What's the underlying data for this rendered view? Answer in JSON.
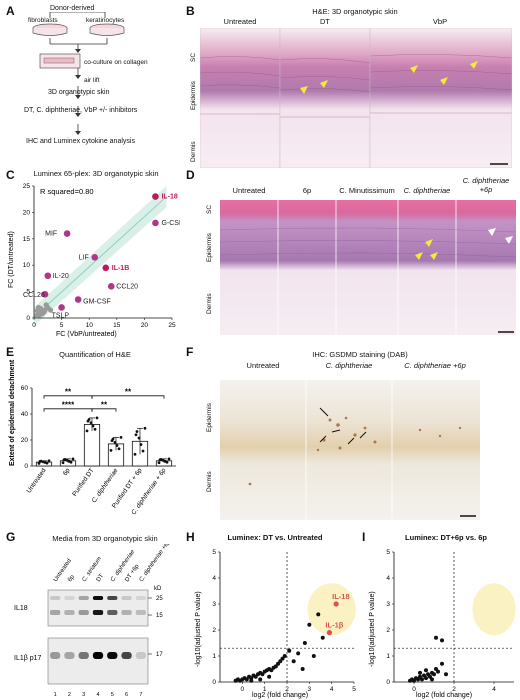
{
  "panelA": {
    "label": "A",
    "donor": "Donor-derived",
    "fibroblasts": "fibroblasts",
    "keratinocytes": "keratinocytes",
    "coculture": "co-culture on collagen",
    "airlift": "air lift",
    "skin": "3D organotypic skin",
    "treat": "DT, C. diphtheriae, VbP +/- inhibitors",
    "analysis": "IHC and Luminex cytokine analysis"
  },
  "panelB": {
    "label": "B",
    "title": "H&E: 3D organotypic skin",
    "cols": [
      "Untreated",
      "DT",
      "VbP"
    ],
    "sc": "SC",
    "epidermis": "Epidermis",
    "dermis": "Dermis"
  },
  "panelC": {
    "label": "C",
    "title": "Luminex 65-plex: 3D organotypic skin",
    "rsq": "R squared=0.80",
    "chart_data": {
      "type": "scatter",
      "xlabel": "FC (VbP/untreated)",
      "ylabel": "FC (DT/untreated)",
      "xlim": [
        0,
        25
      ],
      "ylim": [
        0,
        25
      ],
      "xticks": [
        "0",
        "5",
        "10",
        "15",
        "20",
        "25"
      ],
      "yticks": [
        "0",
        "5",
        "10",
        "15",
        "20",
        "25"
      ],
      "points": [
        {
          "name": "IL-18",
          "x": 22,
          "y": 23,
          "color": "#c2185b",
          "label_color": "#c2185b"
        },
        {
          "name": "G-CSF",
          "x": 22,
          "y": 18,
          "color": "#b0368a",
          "label_color": "#222"
        },
        {
          "name": "MIF",
          "x": 6,
          "y": 16,
          "color": "#b0368a",
          "label_color": "#222"
        },
        {
          "name": "LIF",
          "x": 11,
          "y": 11.5,
          "color": "#b0368a",
          "label_color": "#222"
        },
        {
          "name": "IL-1B",
          "x": 13,
          "y": 9.5,
          "color": "#c2185b",
          "label_color": "#c2185b"
        },
        {
          "name": "IL-20",
          "x": 2.5,
          "y": 8,
          "color": "#b0368a",
          "label_color": "#222"
        },
        {
          "name": "CCL20",
          "x": 14,
          "y": 6,
          "color": "#b0368a",
          "label_color": "#222"
        },
        {
          "name": "CCL26",
          "x": 2,
          "y": 4.5,
          "color": "#b0368a",
          "label_color": "#222"
        },
        {
          "name": "GM-CSF",
          "x": 8,
          "y": 3.5,
          "color": "#b0368a",
          "label_color": "#222"
        },
        {
          "name": "TSLP",
          "x": 5,
          "y": 2,
          "color": "#b0368a",
          "label_color": "#222"
        }
      ],
      "background_points": [
        [
          0.5,
          0.5
        ],
        [
          1,
          1.2
        ],
        [
          1.5,
          0.8
        ],
        [
          2,
          1.5
        ],
        [
          0.8,
          2
        ],
        [
          1.2,
          1.8
        ],
        [
          2.5,
          2
        ],
        [
          3,
          1.5
        ],
        [
          1,
          0.6
        ],
        [
          1.8,
          1.1
        ],
        [
          0.6,
          1.4
        ],
        [
          2.2,
          2.5
        ]
      ]
    }
  },
  "panelD": {
    "label": "D",
    "cols": [
      "Untreated",
      "6p",
      "C. Minutissimum",
      "C. diphtheriae",
      "C. diphtheriae +6p"
    ],
    "sc": "SC",
    "epidermis": "Epidermis",
    "dermis": "Dermis"
  },
  "panelE": {
    "label": "E",
    "title": "Quantification of H&E",
    "chart_data": {
      "type": "bar",
      "ylabel": "Extent of epidermal detachment",
      "ylim": [
        0,
        60
      ],
      "yticks": [
        "0",
        "20",
        "40",
        "60"
      ],
      "categories": [
        "Untreated",
        "6p",
        "Purified DT",
        "C. diphtheriae",
        "Purified DT + 6p",
        "C. diphtheriae + 6p"
      ],
      "values": [
        3,
        4,
        32,
        17,
        19,
        4
      ],
      "errors": [
        1,
        1.5,
        5,
        5,
        10,
        1.5
      ],
      "significance": [
        "****",
        "**",
        "**",
        "**"
      ]
    }
  },
  "panelF": {
    "label": "F",
    "title": "IHC: GSDMD staining (DAB)",
    "cols": [
      "Untreated",
      "C. diphtheriae",
      "C. diphtheriae +6p"
    ],
    "epidermis": "Epidermis",
    "dermis": "Dermis"
  },
  "panelG": {
    "label": "G",
    "title": "Media from 3D organotypic skin",
    "lanes": [
      "Untreated",
      "6p",
      "C. striatum",
      "DT",
      "C. diphtheriae",
      "DT +6p",
      "C. diphtheriae +6p"
    ],
    "lane_numbers": [
      "1",
      "2",
      "3",
      "4",
      "5",
      "6",
      "7"
    ],
    "kd": "kD",
    "rows": [
      "IL18",
      "IL1β p17"
    ],
    "markers": [
      "25",
      "15",
      "17"
    ]
  },
  "panelH": {
    "label": "H",
    "title": "Luminex: DT vs. Untreated",
    "chart_data": {
      "type": "scatter",
      "xlabel": "log2 (fold change)",
      "ylabel": "-log10(adjusted P value)",
      "xlim": [
        -1,
        5
      ],
      "ylim": [
        0,
        5
      ],
      "xticks": [
        "0",
        "1",
        "2",
        "3",
        "4",
        "5"
      ],
      "yticks": [
        "0",
        "1",
        "2",
        "3",
        "4",
        "5"
      ],
      "highlighted": [
        {
          "name": "IL-18",
          "x": 4.2,
          "y": 3.0
        },
        {
          "name": "IL-1β",
          "x": 3.9,
          "y": 1.9
        }
      ],
      "points": [
        [
          -0.3,
          0.05
        ],
        [
          -0.2,
          0.1
        ],
        [
          -0.1,
          0.05
        ],
        [
          0,
          0.1
        ],
        [
          0.1,
          0.15
        ],
        [
          0.2,
          0.1
        ],
        [
          0.3,
          0.2
        ],
        [
          0.4,
          0.15
        ],
        [
          0.5,
          0.25
        ],
        [
          0.6,
          0.2
        ],
        [
          0.7,
          0.3
        ],
        [
          0.8,
          0.35
        ],
        [
          0.9,
          0.3
        ],
        [
          1.0,
          0.4
        ],
        [
          1.1,
          0.45
        ],
        [
          1.2,
          0.5
        ],
        [
          1.3,
          0.45
        ],
        [
          1.4,
          0.55
        ],
        [
          1.5,
          0.6
        ],
        [
          1.6,
          0.7
        ],
        [
          1.7,
          0.8
        ],
        [
          1.8,
          0.9
        ],
        [
          1.9,
          1.0
        ],
        [
          2.1,
          1.2
        ],
        [
          2.3,
          0.8
        ],
        [
          2.5,
          1.1
        ],
        [
          2.8,
          1.5
        ],
        [
          3.0,
          2.2
        ],
        [
          3.2,
          1.0
        ],
        [
          3.4,
          2.6
        ],
        [
          3.6,
          1.7
        ],
        [
          2.7,
          0.5
        ],
        [
          0.4,
          0.05
        ],
        [
          0.8,
          0.1
        ],
        [
          1.2,
          0.2
        ]
      ]
    }
  },
  "panelI": {
    "label": "I",
    "title": "Luminex: DT+6p vs. 6p",
    "chart_data": {
      "type": "scatter",
      "xlabel": "log2 (fold change)",
      "ylabel": "-log10(adjusted P value)",
      "xlim": [
        -1,
        5
      ],
      "ylim": [
        0,
        5
      ],
      "xticks": [
        "0",
        "2",
        "4"
      ],
      "yticks": [
        "0",
        "1",
        "2",
        "3",
        "4",
        "5"
      ],
      "points": [
        [
          -0.2,
          0.05
        ],
        [
          -0.1,
          0.1
        ],
        [
          0,
          0.05
        ],
        [
          0.1,
          0.15
        ],
        [
          0.2,
          0.1
        ],
        [
          0.3,
          0.2
        ],
        [
          0.4,
          0.1
        ],
        [
          0.5,
          0.25
        ],
        [
          0.6,
          0.15
        ],
        [
          0.7,
          0.3
        ],
        [
          0.8,
          0.2
        ],
        [
          0.9,
          0.35
        ],
        [
          1.0,
          0.3
        ],
        [
          1.1,
          0.5
        ],
        [
          1.2,
          0.4
        ],
        [
          1.4,
          0.7
        ],
        [
          1.6,
          0.3
        ],
        [
          1.1,
          1.7
        ],
        [
          1.4,
          1.6
        ],
        [
          0.3,
          0.35
        ],
        [
          0.6,
          0.45
        ],
        [
          0.9,
          0.1
        ]
      ]
    }
  }
}
